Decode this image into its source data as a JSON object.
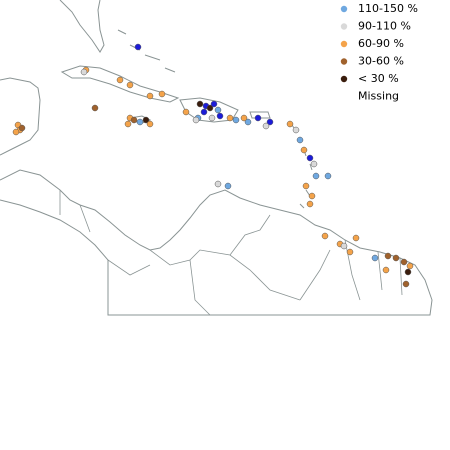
{
  "legend": {
    "items": [
      {
        "label": "110-150 %",
        "color": "#6fa8e0"
      },
      {
        "label": "90-110 %",
        "color": "#d9d9d9"
      },
      {
        "label": "60-90 %",
        "color": "#f4a34a"
      },
      {
        "label": "30-60 %",
        "color": "#a0622d"
      },
      {
        "label": "< 30  %",
        "color": "#3a1d0d"
      },
      {
        "label": "Missing"
      }
    ]
  }
}
